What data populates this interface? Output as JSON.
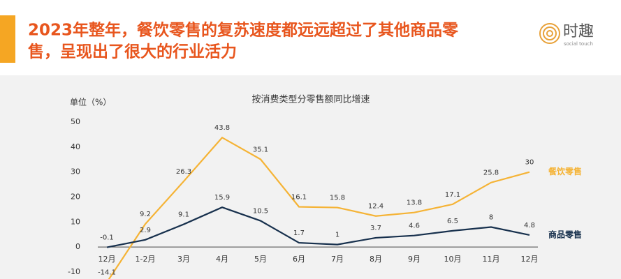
{
  "header": {
    "title_lines": [
      "2023年整年，餐饮零售的复苏速度都远远超过了其他商品零",
      "售，呈现出了很大的行业活力"
    ],
    "logo": "时趣",
    "logo_subtitle": "social touch"
  },
  "chart_data": {
    "type": "line",
    "title": "按消费类型分零售额同比增速",
    "y_label": "单位（%）",
    "categories": [
      "12月",
      "1-2月",
      "3月",
      "4月",
      "5月",
      "6月",
      "7月",
      "8月",
      "9月",
      "10月",
      "11月",
      "12月"
    ],
    "series": [
      {
        "name": "餐饮零售",
        "color": "#f5b335",
        "values": [
          -14.1,
          9.2,
          26.3,
          43.8,
          35.1,
          16.1,
          15.8,
          12.4,
          13.8,
          17.1,
          25.8,
          30
        ]
      },
      {
        "name": "商品零售",
        "color": "#17304d",
        "values": [
          -0.1,
          2.9,
          9.1,
          15.9,
          10.5,
          1.7,
          1,
          3.7,
          4.6,
          6.5,
          8,
          4.8
        ]
      }
    ],
    "ylim": [
      -10,
      50
    ],
    "yticks": [
      -10,
      0,
      10,
      20,
      30,
      40,
      50
    ],
    "grid": false
  }
}
